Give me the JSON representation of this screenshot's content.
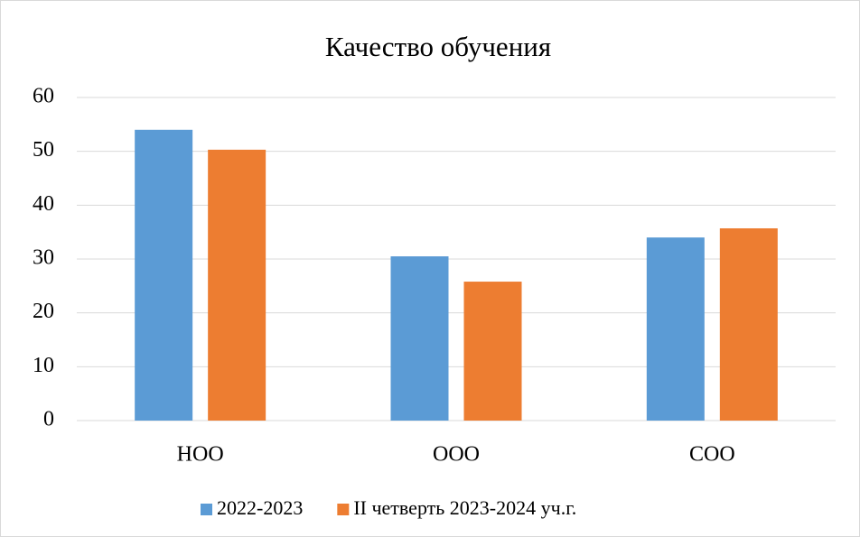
{
  "chart_data": {
    "type": "bar",
    "title": "Качество обучения",
    "categories": [
      "НОО",
      "ООО",
      "СОО"
    ],
    "series": [
      {
        "name": "2022-2023",
        "color": "#5b9bd5",
        "values": [
          54,
          30.5,
          34
        ]
      },
      {
        "name": "II четверть 2023-2024 уч.г.",
        "color": "#ed7d31",
        "values": [
          50.3,
          25.8,
          35.7
        ]
      }
    ],
    "ylim": [
      0,
      60
    ],
    "yticks": [
      0,
      10,
      20,
      30,
      40,
      50,
      60
    ],
    "grid": true,
    "legend": "bottom"
  }
}
